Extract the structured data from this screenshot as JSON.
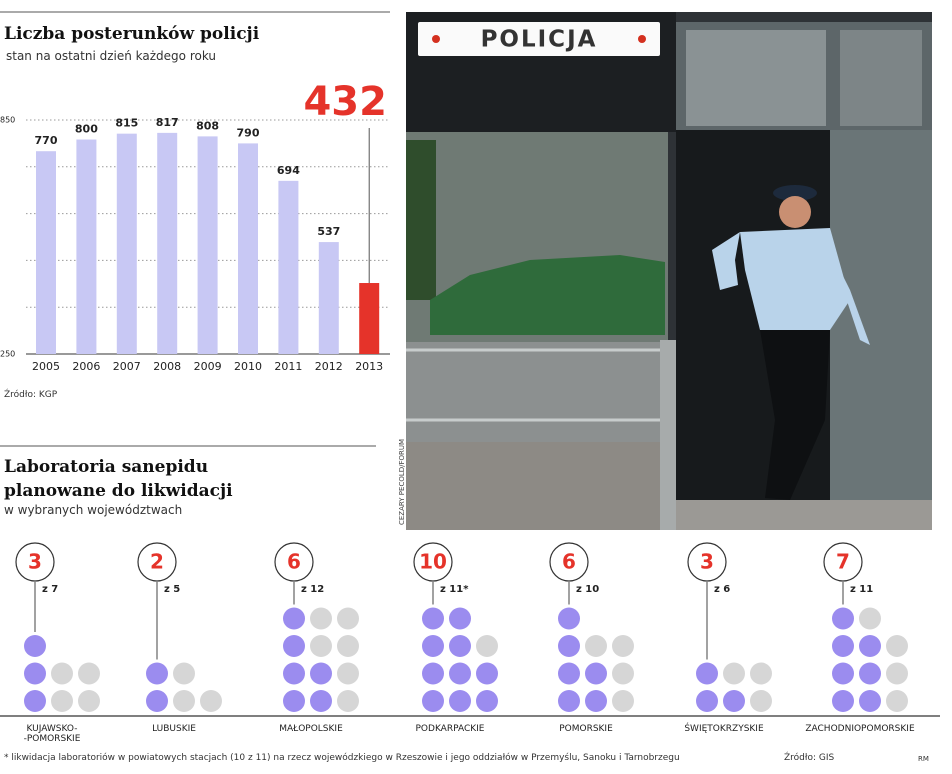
{
  "chart_data": [
    {
      "type": "bar",
      "title": "Liczba posterunków policji",
      "subtitle": "stan na ostatni dzień każdego roku",
      "categories": [
        "2005",
        "2006",
        "2007",
        "2008",
        "2009",
        "2010",
        "2011",
        "2012",
        "2013"
      ],
      "values": [
        770,
        800,
        815,
        817,
        808,
        790,
        694,
        537,
        432
      ],
      "colors": [
        "#c8c8f4",
        "#c8c8f4",
        "#c8c8f4",
        "#c8c8f4",
        "#c8c8f4",
        "#c8c8f4",
        "#c8c8f4",
        "#c8c8f4",
        "#e5332a"
      ],
      "ylim": [
        250,
        850
      ],
      "yticks": [
        250,
        850
      ],
      "minor_yticks": [
        370,
        490,
        610,
        730
      ],
      "source": "Źródło: KGP"
    },
    {
      "type": "dots",
      "title": "Laboratoria sanepidu planowane do likwidacji",
      "subtitle": "w wybranych województwach",
      "categories": [
        "KUJAWSKO-\n-POMORSKIE",
        "LUBUSKIE",
        "MAŁOPOLSKIE",
        "PODKARPACKIE",
        "POMORSKIE",
        "ŚWIĘTOKRZYSKIE",
        "ZACHODNIOPOMORSKIE"
      ],
      "values": [
        3,
        2,
        6,
        10,
        6,
        3,
        7
      ],
      "totals": [
        7,
        5,
        12,
        11,
        10,
        6,
        11
      ],
      "total_labels": [
        "z 7",
        "z 5",
        "z 12",
        "z 11*",
        "z 10",
        "z 6",
        "z 11"
      ],
      "color": "#9b8cef",
      "rest_color": "#d6d6d6",
      "number_color": "#e5332a",
      "footnote": "* likwidacja laboratoriów w powiatowych stacjach (10 z 11) na rzecz wojewódzkiego w Rzeszowie i jego oddziałów w Przemyślu, Sanoku i Tarnobrzegu",
      "source": "Źródło: GIS",
      "author": "RM"
    }
  ],
  "photo": {
    "sign": "POLICJA",
    "credit": "CEZARY PECOLD/FORUM"
  }
}
